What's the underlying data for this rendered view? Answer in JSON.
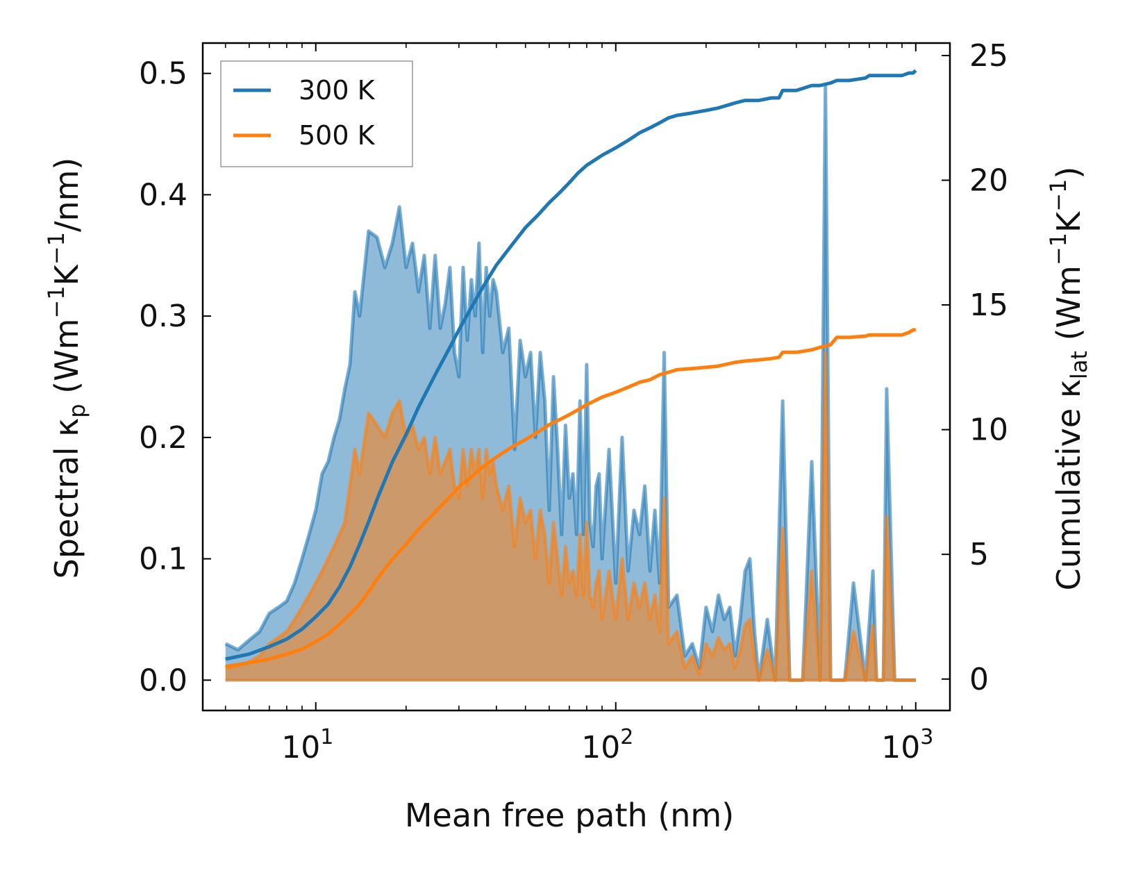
{
  "chart_data": {
    "type": "line",
    "xscale": "log",
    "xlim": [
      4.2,
      1300
    ],
    "ylim_left": [
      -0.025,
      0.525
    ],
    "ylim_right": [
      -1.26,
      25.5
    ],
    "xlabel": "Mean free path (nm)",
    "ylabel_left": "Spectral κ",
    "ylabel_left_sub": "p",
    "ylabel_left_units": "(Wm",
    "ylabel_right": "Cumulative κ",
    "ylabel_right_sub": "lat",
    "ylabel_right_units": "(Wm",
    "unit_sup": "−1",
    "unit_k": "K",
    "unit_tail_left": "/nm)",
    "unit_tail_right": ")",
    "x_ticks": [
      {
        "value": 10,
        "base": "10",
        "exp": "1"
      },
      {
        "value": 100,
        "base": "10",
        "exp": "2"
      },
      {
        "value": 1000,
        "base": "10",
        "exp": "3"
      }
    ],
    "y_left_ticks": [
      0.0,
      0.1,
      0.2,
      0.3,
      0.4,
      0.5
    ],
    "y_left_tick_labels": [
      "0.0",
      "0.1",
      "0.2",
      "0.3",
      "0.4",
      "0.5"
    ],
    "y_right_ticks": [
      0,
      5,
      10,
      15,
      20,
      25
    ],
    "y_right_tick_labels": [
      "0",
      "5",
      "10",
      "15",
      "20",
      "25"
    ],
    "legend": {
      "placement": "top-left",
      "entries": [
        {
          "label": "300 K",
          "color": "#1f77b4"
        },
        {
          "label": "500 K",
          "color": "#ff7f0e"
        }
      ]
    },
    "series": [
      {
        "name": "300 K spectral",
        "axis": "left",
        "color": "#1f77b4",
        "style": "filled",
        "x": [
          5,
          5.5,
          6,
          6.5,
          7,
          7.5,
          8,
          8.5,
          9,
          9.5,
          10,
          10.5,
          11,
          11.5,
          12,
          12.5,
          13,
          13.5,
          14,
          15,
          16,
          17,
          18,
          19,
          20,
          21,
          22,
          23,
          24,
          25,
          26,
          27,
          28,
          29,
          30,
          31,
          32,
          33,
          34,
          35,
          36,
          37,
          38,
          39,
          40,
          42,
          44,
          46,
          48,
          50,
          52,
          54,
          56,
          58,
          60,
          62,
          64,
          66,
          68,
          70,
          72,
          74,
          76,
          78,
          80,
          82,
          84,
          86,
          88,
          90,
          95,
          100,
          105,
          110,
          115,
          120,
          125,
          130,
          135,
          140,
          145,
          150,
          160,
          170,
          180,
          190,
          200,
          210,
          220,
          230,
          240,
          250,
          260,
          270,
          280,
          290,
          300,
          320,
          340,
          360,
          380,
          400,
          420,
          450,
          480,
          500,
          520,
          545,
          560,
          580,
          620,
          680,
          720,
          740,
          760,
          780,
          800,
          850,
          900,
          950,
          980,
          1000
        ],
        "values": [
          0.03,
          0.025,
          0.033,
          0.04,
          0.055,
          0.06,
          0.065,
          0.08,
          0.1,
          0.12,
          0.14,
          0.17,
          0.18,
          0.2,
          0.215,
          0.24,
          0.26,
          0.32,
          0.3,
          0.37,
          0.365,
          0.34,
          0.36,
          0.39,
          0.34,
          0.36,
          0.32,
          0.35,
          0.29,
          0.35,
          0.29,
          0.31,
          0.34,
          0.27,
          0.25,
          0.34,
          0.28,
          0.33,
          0.3,
          0.36,
          0.27,
          0.34,
          0.3,
          0.33,
          0.32,
          0.27,
          0.29,
          0.19,
          0.28,
          0.25,
          0.27,
          0.2,
          0.27,
          0.23,
          0.14,
          0.25,
          0.19,
          0.12,
          0.21,
          0.15,
          0.17,
          0.12,
          0.23,
          0.12,
          0.26,
          0.13,
          0.11,
          0.16,
          0.17,
          0.1,
          0.19,
          0.08,
          0.2,
          0.09,
          0.14,
          0.12,
          0.16,
          0.09,
          0.14,
          0.08,
          0.27,
          0.06,
          0.07,
          0.02,
          0.03,
          0.01,
          0.06,
          0.04,
          0.07,
          0.05,
          0.06,
          0.02,
          0.05,
          0.09,
          0.1,
          0.04,
          0.0,
          0.05,
          0.0,
          0.23,
          0.0,
          0.0,
          0.0,
          0.18,
          0.0,
          0.49,
          0.0,
          0.0,
          0.0,
          0.0,
          0.08,
          0.0,
          0.09,
          0.0,
          0.0,
          0.0,
          0.24,
          0.0,
          0.0,
          0.0,
          0.0,
          0.0
        ]
      },
      {
        "name": "500 K spectral",
        "axis": "left",
        "color": "#ff7f0e",
        "style": "filled",
        "x": [
          5,
          5.5,
          6,
          6.5,
          7,
          7.5,
          8,
          8.5,
          9,
          9.5,
          10,
          10.5,
          11,
          11.5,
          12,
          12.5,
          13,
          13.5,
          14,
          15,
          16,
          17,
          18,
          19,
          20,
          21,
          22,
          23,
          24,
          25,
          26,
          27,
          28,
          29,
          30,
          31,
          32,
          33,
          34,
          35,
          36,
          37,
          38,
          39,
          40,
          42,
          44,
          46,
          48,
          50,
          52,
          54,
          56,
          58,
          60,
          62,
          64,
          66,
          68,
          70,
          72,
          74,
          76,
          78,
          80,
          82,
          84,
          86,
          88,
          90,
          95,
          100,
          105,
          110,
          115,
          120,
          125,
          130,
          135,
          140,
          145,
          150,
          160,
          170,
          180,
          190,
          200,
          210,
          220,
          230,
          240,
          250,
          260,
          270,
          280,
          290,
          300,
          320,
          340,
          360,
          380,
          400,
          420,
          450,
          480,
          500,
          520,
          545,
          560,
          580,
          620,
          680,
          720,
          740,
          760,
          780,
          800,
          850,
          900,
          950,
          980,
          1000
        ],
        "values": [
          0.01,
          0.012,
          0.015,
          0.02,
          0.03,
          0.035,
          0.04,
          0.05,
          0.06,
          0.07,
          0.08,
          0.09,
          0.1,
          0.11,
          0.12,
          0.13,
          0.16,
          0.19,
          0.17,
          0.22,
          0.21,
          0.2,
          0.22,
          0.23,
          0.2,
          0.21,
          0.19,
          0.2,
          0.17,
          0.2,
          0.17,
          0.18,
          0.19,
          0.16,
          0.15,
          0.19,
          0.16,
          0.19,
          0.17,
          0.19,
          0.15,
          0.19,
          0.17,
          0.18,
          0.16,
          0.14,
          0.16,
          0.11,
          0.15,
          0.13,
          0.14,
          0.1,
          0.14,
          0.12,
          0.08,
          0.13,
          0.1,
          0.07,
          0.11,
          0.08,
          0.09,
          0.07,
          0.12,
          0.07,
          0.13,
          0.07,
          0.06,
          0.08,
          0.09,
          0.05,
          0.09,
          0.05,
          0.1,
          0.05,
          0.08,
          0.06,
          0.08,
          0.05,
          0.07,
          0.04,
          0.15,
          0.03,
          0.04,
          0.01,
          0.02,
          0.005,
          0.03,
          0.02,
          0.035,
          0.025,
          0.03,
          0.01,
          0.025,
          0.045,
          0.05,
          0.02,
          0.0,
          0.025,
          0.0,
          0.125,
          0.0,
          0.0,
          0.0,
          0.09,
          0.0,
          0.27,
          0.0,
          0.0,
          0.0,
          0.0,
          0.04,
          0.0,
          0.045,
          0.0,
          0.0,
          0.0,
          0.135,
          0.0,
          0.0,
          0.0,
          0.0,
          0.0
        ]
      },
      {
        "name": "300 K cumulative",
        "axis": "right",
        "color": "#1f77b4",
        "style": "line",
        "x": [
          5,
          6,
          7,
          8,
          9,
          10,
          11,
          12,
          13,
          14,
          15,
          16,
          18,
          20,
          22,
          25,
          28,
          30,
          33,
          36,
          40,
          45,
          50,
          55,
          60,
          65,
          70,
          75,
          80,
          90,
          100,
          110,
          120,
          130,
          140,
          150,
          160,
          180,
          200,
          220,
          250,
          270,
          300,
          330,
          350,
          360,
          400,
          450,
          480,
          520,
          545,
          560,
          600,
          680,
          700,
          800,
          900,
          950,
          980,
          1000
        ],
        "values": [
          0.8,
          1.0,
          1.3,
          1.6,
          2.0,
          2.5,
          3.0,
          3.7,
          4.5,
          5.4,
          6.3,
          7.2,
          8.7,
          9.8,
          10.9,
          12.2,
          13.3,
          14.0,
          14.9,
          15.7,
          16.6,
          17.4,
          18.1,
          18.6,
          19.1,
          19.5,
          19.9,
          20.3,
          20.6,
          21.0,
          21.3,
          21.6,
          21.9,
          22.1,
          22.3,
          22.5,
          22.6,
          22.7,
          22.8,
          22.9,
          23.1,
          23.2,
          23.2,
          23.3,
          23.3,
          23.6,
          23.6,
          23.8,
          23.8,
          23.9,
          24.0,
          24.0,
          24.0,
          24.1,
          24.2,
          24.2,
          24.2,
          24.3,
          24.3,
          24.4
        ]
      },
      {
        "name": "500 K cumulative",
        "axis": "right",
        "color": "#ff7f0e",
        "style": "line",
        "x": [
          5,
          6,
          7,
          8,
          9,
          10,
          11,
          12,
          13,
          14,
          15,
          16,
          18,
          20,
          22,
          25,
          28,
          30,
          33,
          36,
          40,
          45,
          50,
          55,
          60,
          65,
          70,
          75,
          80,
          90,
          100,
          110,
          120,
          130,
          140,
          150,
          160,
          180,
          200,
          220,
          250,
          270,
          300,
          330,
          350,
          360,
          400,
          450,
          480,
          520,
          545,
          560,
          600,
          680,
          700,
          800,
          900,
          950,
          980,
          1000
        ],
        "values": [
          0.5,
          0.65,
          0.8,
          1.0,
          1.2,
          1.5,
          1.8,
          2.2,
          2.6,
          3.0,
          3.5,
          4.0,
          4.8,
          5.4,
          6.0,
          6.7,
          7.3,
          7.7,
          8.1,
          8.5,
          8.9,
          9.3,
          9.6,
          9.9,
          10.2,
          10.4,
          10.6,
          10.8,
          11.0,
          11.3,
          11.5,
          11.7,
          11.9,
          12.0,
          12.2,
          12.3,
          12.4,
          12.45,
          12.5,
          12.55,
          12.7,
          12.75,
          12.8,
          12.85,
          12.9,
          13.1,
          13.1,
          13.2,
          13.3,
          13.4,
          13.7,
          13.7,
          13.7,
          13.75,
          13.8,
          13.8,
          13.8,
          13.9,
          14.0,
          14.0
        ]
      }
    ]
  }
}
